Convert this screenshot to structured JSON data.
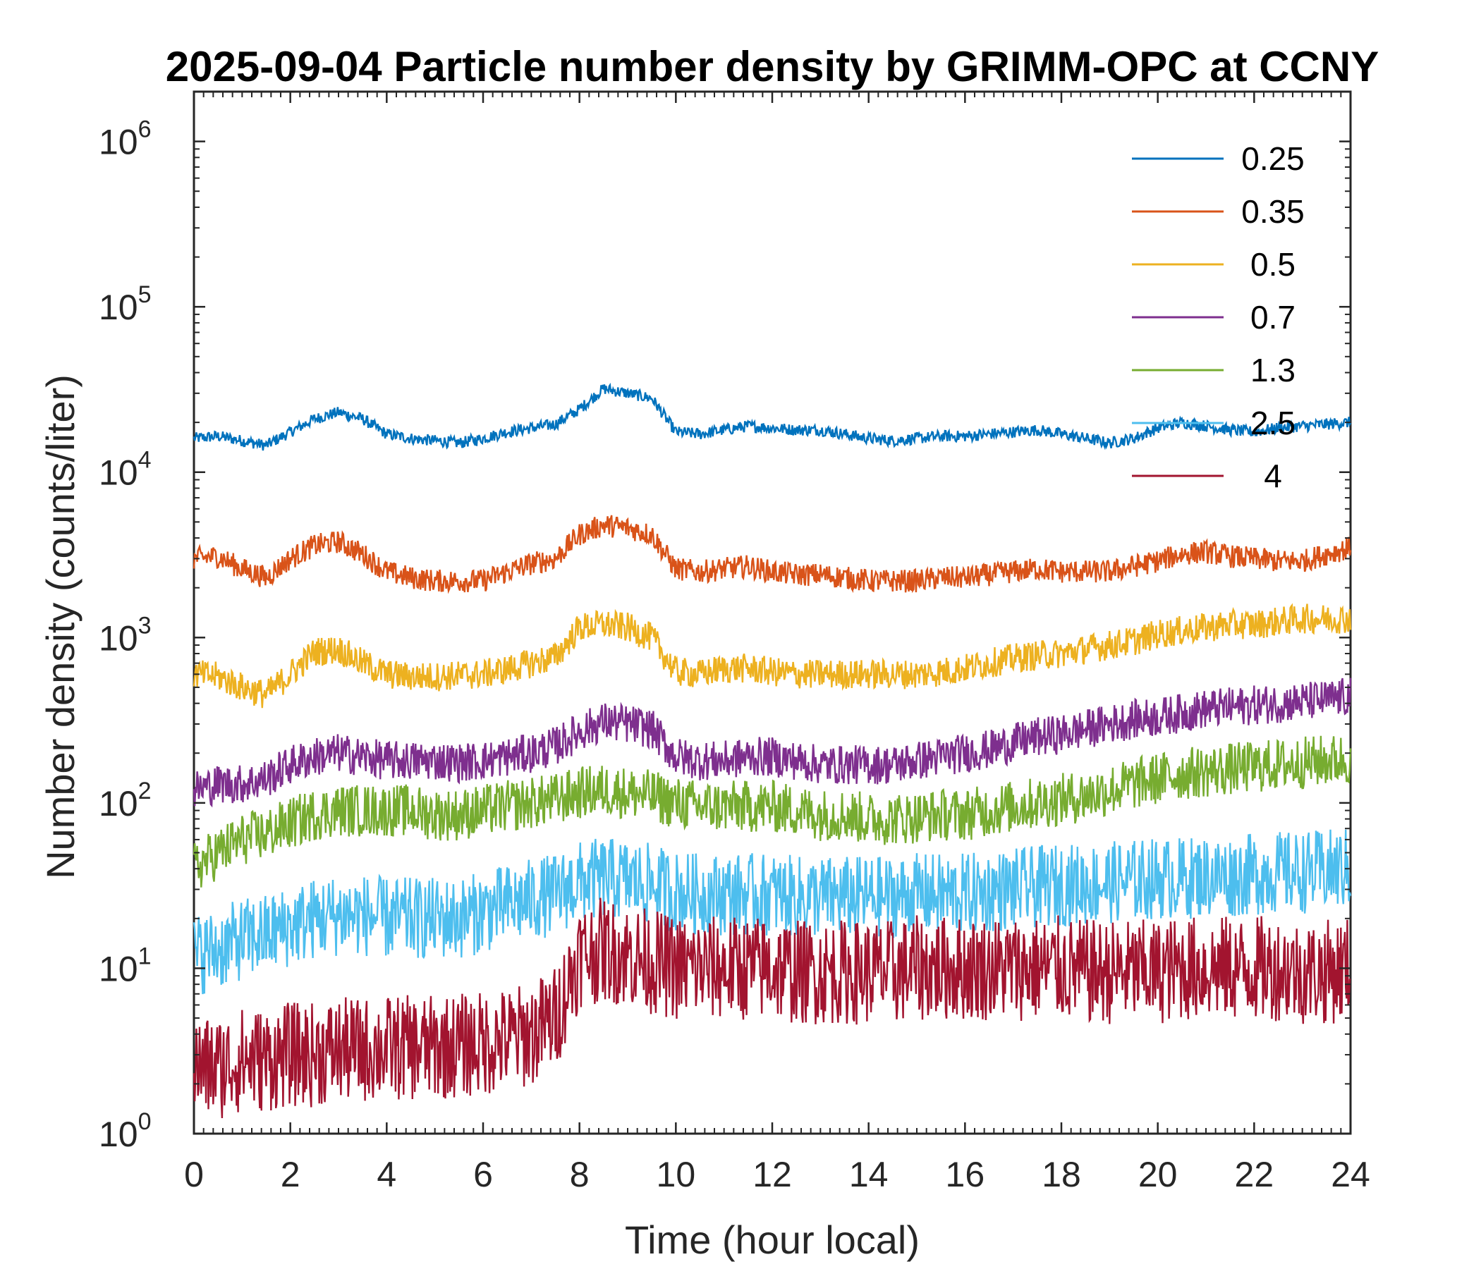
{
  "colors": {
    "0.25": "#0072BD",
    "0.35": "#D95319",
    "0.5": "#EDB120",
    "0.7": "#7E2F8E",
    "1.3": "#77AC30",
    "2.5": "#4DBEEE",
    "4": "#A2142F"
  },
  "chart_data": {
    "type": "line",
    "title": "2025-09-04 Particle number density by GRIMM-OPC at CCNY",
    "xlabel": "Time (hour local)",
    "ylabel": "Number density (counts/liter)",
    "xlim": [
      0,
      24
    ],
    "ylim": [
      1,
      2000000
    ],
    "yscale": "log",
    "xticks": [
      0,
      2,
      4,
      6,
      8,
      10,
      12,
      14,
      16,
      18,
      20,
      22,
      24
    ],
    "yticks": [
      {
        "value": 1,
        "base": "10",
        "exp": "0"
      },
      {
        "value": 10,
        "base": "10",
        "exp": "1"
      },
      {
        "value": 100,
        "base": "10",
        "exp": "2"
      },
      {
        "value": 1000,
        "base": "10",
        "exp": "3"
      },
      {
        "value": 10000,
        "base": "10",
        "exp": "4"
      },
      {
        "value": 100000,
        "base": "10",
        "exp": "5"
      },
      {
        "value": 1000000,
        "base": "10",
        "exp": "6"
      }
    ],
    "grid": false,
    "legend_position": "top-right",
    "x": [
      0,
      0.5,
      1,
      1.5,
      2,
      2.5,
      3,
      3.5,
      4,
      4.5,
      5,
      5.5,
      6,
      6.5,
      7,
      7.5,
      8,
      8.5,
      9,
      9.5,
      10,
      10.5,
      11,
      11.5,
      12,
      12.5,
      13,
      13.5,
      14,
      14.5,
      15,
      15.5,
      16,
      16.5,
      17,
      17.5,
      18,
      18.5,
      19,
      19.5,
      20,
      20.5,
      21,
      21.5,
      22,
      22.5,
      23,
      23.5,
      24
    ],
    "series": [
      {
        "name": "0.25",
        "values": [
          16000,
          16500,
          15500,
          14500,
          17500,
          21000,
          23000,
          21000,
          17000,
          16000,
          15500,
          15000,
          16000,
          17500,
          18500,
          19500,
          24000,
          32000,
          30000,
          28000,
          17500,
          17000,
          18000,
          19000,
          18500,
          18000,
          18000,
          17000,
          16000,
          15500,
          16000,
          16500,
          16500,
          17000,
          17500,
          18000,
          17000,
          16000,
          15000,
          16000,
          18500,
          20000,
          19000,
          18000,
          17500,
          18500,
          19000,
          19500,
          20000
        ]
      },
      {
        "name": "0.35",
        "values": [
          3000,
          3100,
          2600,
          2300,
          3000,
          3600,
          3800,
          3200,
          2500,
          2300,
          2200,
          2200,
          2200,
          2500,
          2800,
          3000,
          4200,
          4800,
          4600,
          4200,
          2600,
          2500,
          2600,
          2700,
          2500,
          2400,
          2400,
          2300,
          2200,
          2200,
          2200,
          2300,
          2300,
          2400,
          2500,
          2600,
          2500,
          2500,
          2500,
          2700,
          2900,
          3200,
          3300,
          3100,
          3000,
          2900,
          2900,
          3200,
          3500
        ]
      },
      {
        "name": "0.5",
        "values": [
          600,
          580,
          500,
          450,
          600,
          820,
          850,
          700,
          600,
          580,
          580,
          590,
          600,
          640,
          700,
          760,
          1150,
          1200,
          1150,
          1000,
          620,
          600,
          650,
          650,
          620,
          600,
          600,
          600,
          600,
          600,
          600,
          620,
          650,
          700,
          750,
          780,
          800,
          850,
          900,
          950,
          1050,
          1100,
          1150,
          1200,
          1200,
          1250,
          1300,
          1300,
          1300
        ]
      },
      {
        "name": "0.7",
        "values": [
          120,
          130,
          130,
          140,
          170,
          190,
          200,
          190,
          180,
          180,
          180,
          175,
          180,
          190,
          200,
          220,
          270,
          310,
          300,
          280,
          190,
          180,
          180,
          190,
          190,
          180,
          170,
          170,
          170,
          170,
          180,
          190,
          200,
          210,
          230,
          250,
          260,
          280,
          300,
          320,
          330,
          350,
          370,
          380,
          390,
          400,
          410,
          420,
          440
        ]
      },
      {
        "name": "1.3",
        "values": [
          40,
          50,
          60,
          65,
          75,
          85,
          90,
          90,
          90,
          90,
          85,
          85,
          90,
          95,
          100,
          105,
          115,
          120,
          115,
          110,
          100,
          95,
          95,
          95,
          95,
          90,
          85,
          85,
          80,
          80,
          82,
          85,
          85,
          90,
          95,
          100,
          105,
          110,
          120,
          130,
          140,
          150,
          155,
          160,
          165,
          170,
          175,
          180,
          185
        ]
      },
      {
        "name": "2.5",
        "values": [
          12,
          13,
          15,
          16,
          18,
          20,
          21,
          21,
          20,
          20,
          20,
          20,
          22,
          24,
          26,
          28,
          33,
          35,
          34,
          32,
          29,
          28,
          28,
          28,
          28,
          27,
          27,
          27,
          27,
          27,
          28,
          28,
          28,
          29,
          30,
          31,
          32,
          32,
          33,
          34,
          35,
          35,
          36,
          36,
          37,
          38,
          38,
          39,
          40
        ]
      },
      {
        "name": "4",
        "values": [
          2.5,
          2.5,
          2.8,
          2.8,
          3,
          3,
          3.2,
          3.2,
          3.3,
          3.3,
          3.3,
          3.4,
          3.5,
          3.7,
          4,
          5,
          12,
          13,
          12,
          11,
          10,
          10,
          10,
          10,
          10,
          9.5,
          9.5,
          9.5,
          9.5,
          9.5,
          10,
          10,
          10,
          10,
          10,
          10,
          10,
          9.5,
          9.5,
          9.5,
          9.5,
          10,
          10,
          10,
          10,
          10,
          9.5,
          9.5,
          10
        ]
      }
    ]
  }
}
